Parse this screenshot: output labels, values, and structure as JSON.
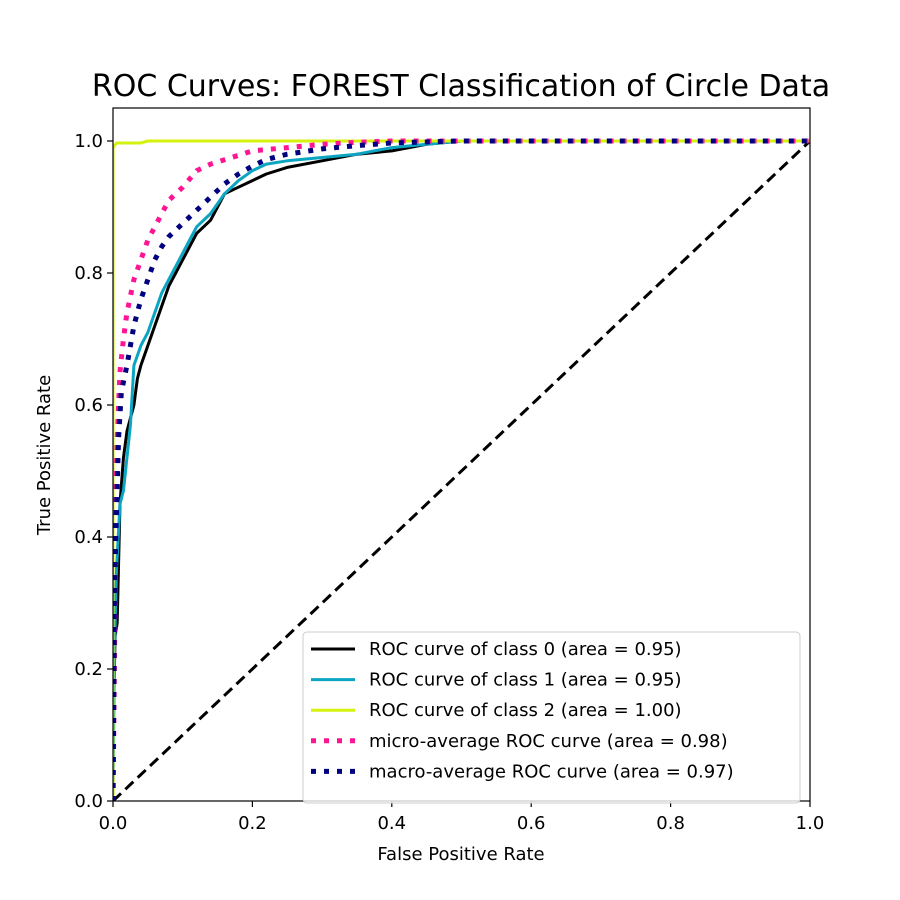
{
  "chart_data": {
    "type": "line",
    "title": "ROC Curves: FOREST Classification of Circle Data",
    "xlabel": "False Positive Rate",
    "ylabel": "True Positive Rate",
    "xlim": [
      0.0,
      1.0
    ],
    "ylim": [
      0.0,
      1.05
    ],
    "xticks": [
      "0.0",
      "0.2",
      "0.4",
      "0.6",
      "0.8",
      "1.0"
    ],
    "yticks": [
      "0.0",
      "0.2",
      "0.4",
      "0.6",
      "0.8",
      "1.0"
    ],
    "grid": false,
    "legend_position": "lower-right",
    "series": [
      {
        "name": "ROC curve of class 0 (area = 0.95)",
        "color": "#000000",
        "style": "solid",
        "points": [
          [
            0,
            0
          ],
          [
            0,
            0.1
          ],
          [
            0.003,
            0.25
          ],
          [
            0.006,
            0.27
          ],
          [
            0.01,
            0.45
          ],
          [
            0.015,
            0.52
          ],
          [
            0.02,
            0.56
          ],
          [
            0.03,
            0.6
          ],
          [
            0.035,
            0.64
          ],
          [
            0.04,
            0.66
          ],
          [
            0.05,
            0.69
          ],
          [
            0.06,
            0.72
          ],
          [
            0.07,
            0.75
          ],
          [
            0.08,
            0.78
          ],
          [
            0.09,
            0.8
          ],
          [
            0.1,
            0.82
          ],
          [
            0.11,
            0.84
          ],
          [
            0.12,
            0.86
          ],
          [
            0.13,
            0.87
          ],
          [
            0.14,
            0.88
          ],
          [
            0.15,
            0.9
          ],
          [
            0.16,
            0.92
          ],
          [
            0.18,
            0.93
          ],
          [
            0.2,
            0.94
          ],
          [
            0.22,
            0.95
          ],
          [
            0.25,
            0.96
          ],
          [
            0.3,
            0.97
          ],
          [
            0.35,
            0.98
          ],
          [
            0.4,
            0.985
          ],
          [
            0.45,
            0.995
          ],
          [
            0.5,
            1.0
          ],
          [
            1.0,
            1.0
          ]
        ]
      },
      {
        "name": "ROC curve of class 1 (area = 0.95)",
        "color": "#0ba5c2",
        "style": "solid",
        "points": [
          [
            0,
            0
          ],
          [
            0.002,
            0.22
          ],
          [
            0.005,
            0.35
          ],
          [
            0.01,
            0.45
          ],
          [
            0.015,
            0.47
          ],
          [
            0.02,
            0.52
          ],
          [
            0.025,
            0.57
          ],
          [
            0.03,
            0.66
          ],
          [
            0.04,
            0.69
          ],
          [
            0.05,
            0.71
          ],
          [
            0.06,
            0.74
          ],
          [
            0.07,
            0.77
          ],
          [
            0.08,
            0.79
          ],
          [
            0.09,
            0.81
          ],
          [
            0.1,
            0.83
          ],
          [
            0.11,
            0.85
          ],
          [
            0.12,
            0.87
          ],
          [
            0.14,
            0.89
          ],
          [
            0.16,
            0.92
          ],
          [
            0.18,
            0.94
          ],
          [
            0.2,
            0.955
          ],
          [
            0.22,
            0.965
          ],
          [
            0.25,
            0.97
          ],
          [
            0.3,
            0.975
          ],
          [
            0.35,
            0.98
          ],
          [
            0.4,
            0.99
          ],
          [
            0.45,
            0.995
          ],
          [
            0.5,
            1.0
          ],
          [
            1.0,
            1.0
          ]
        ]
      },
      {
        "name": "ROC curve of class 2 (area = 1.00)",
        "color": "#d4f20e",
        "style": "solid",
        "points": [
          [
            0,
            0
          ],
          [
            0,
            0.99
          ],
          [
            0.005,
            0.997
          ],
          [
            0.04,
            0.997
          ],
          [
            0.05,
            1.0
          ],
          [
            1.0,
            1.0
          ]
        ]
      },
      {
        "name": "micro-average ROC curve (area = 0.98)",
        "color": "#ff1493",
        "style": "dotted",
        "points": [
          [
            0,
            0
          ],
          [
            0.002,
            0.2
          ],
          [
            0.004,
            0.45
          ],
          [
            0.006,
            0.55
          ],
          [
            0.01,
            0.65
          ],
          [
            0.015,
            0.7
          ],
          [
            0.02,
            0.74
          ],
          [
            0.03,
            0.79
          ],
          [
            0.04,
            0.82
          ],
          [
            0.05,
            0.85
          ],
          [
            0.06,
            0.87
          ],
          [
            0.07,
            0.89
          ],
          [
            0.08,
            0.91
          ],
          [
            0.1,
            0.93
          ],
          [
            0.12,
            0.955
          ],
          [
            0.14,
            0.965
          ],
          [
            0.17,
            0.975
          ],
          [
            0.2,
            0.985
          ],
          [
            0.25,
            0.99
          ],
          [
            0.3,
            0.995
          ],
          [
            0.35,
            0.998
          ],
          [
            0.4,
            1.0
          ],
          [
            1.0,
            1.0
          ]
        ]
      },
      {
        "name": "macro-average ROC curve (area = 0.97)",
        "color": "#000080",
        "style": "dotted",
        "points": [
          [
            0,
            0
          ],
          [
            0.002,
            0.3
          ],
          [
            0.004,
            0.4
          ],
          [
            0.008,
            0.55
          ],
          [
            0.012,
            0.62
          ],
          [
            0.02,
            0.66
          ],
          [
            0.03,
            0.72
          ],
          [
            0.04,
            0.76
          ],
          [
            0.05,
            0.79
          ],
          [
            0.06,
            0.82
          ],
          [
            0.07,
            0.84
          ],
          [
            0.08,
            0.855
          ],
          [
            0.1,
            0.875
          ],
          [
            0.12,
            0.895
          ],
          [
            0.14,
            0.915
          ],
          [
            0.16,
            0.935
          ],
          [
            0.18,
            0.95
          ],
          [
            0.2,
            0.962
          ],
          [
            0.22,
            0.972
          ],
          [
            0.25,
            0.98
          ],
          [
            0.3,
            0.988
          ],
          [
            0.35,
            0.993
          ],
          [
            0.4,
            0.997
          ],
          [
            0.5,
            1.0
          ],
          [
            1.0,
            1.0
          ]
        ]
      },
      {
        "name": "",
        "color": "#000000",
        "style": "dashed",
        "points": [
          [
            0,
            0
          ],
          [
            1,
            1
          ]
        ]
      }
    ]
  }
}
